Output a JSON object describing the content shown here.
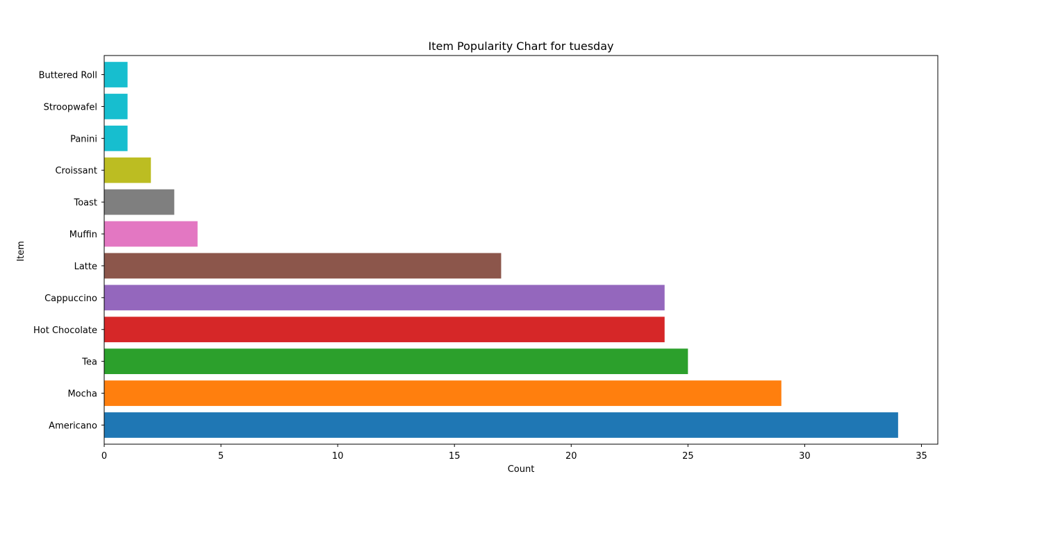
{
  "chart_data": {
    "type": "bar",
    "orientation": "horizontal",
    "title": "Item Popularity Chart for tuesday",
    "xlabel": "Count",
    "ylabel": "Item",
    "categories": [
      "Americano",
      "Mocha",
      "Tea",
      "Hot Chocolate",
      "Cappuccino",
      "Latte",
      "Muffin",
      "Toast",
      "Croissant",
      "Panini",
      "Stroopwafel",
      "Buttered Roll"
    ],
    "values": [
      34,
      29,
      25,
      24,
      24,
      17,
      4,
      3,
      2,
      1,
      1,
      1
    ],
    "colors": [
      "#1f77b4",
      "#ff7f0e",
      "#2ca02c",
      "#d62728",
      "#9467bd",
      "#8c564b",
      "#e377c2",
      "#7f7f7f",
      "#bcbd22",
      "#17becf",
      "#17becf",
      "#17becf"
    ],
    "xlim": [
      0,
      35.7
    ],
    "xticks": [
      0,
      5,
      10,
      15,
      20,
      25,
      30,
      35
    ],
    "grid": false,
    "legend": "none"
  }
}
